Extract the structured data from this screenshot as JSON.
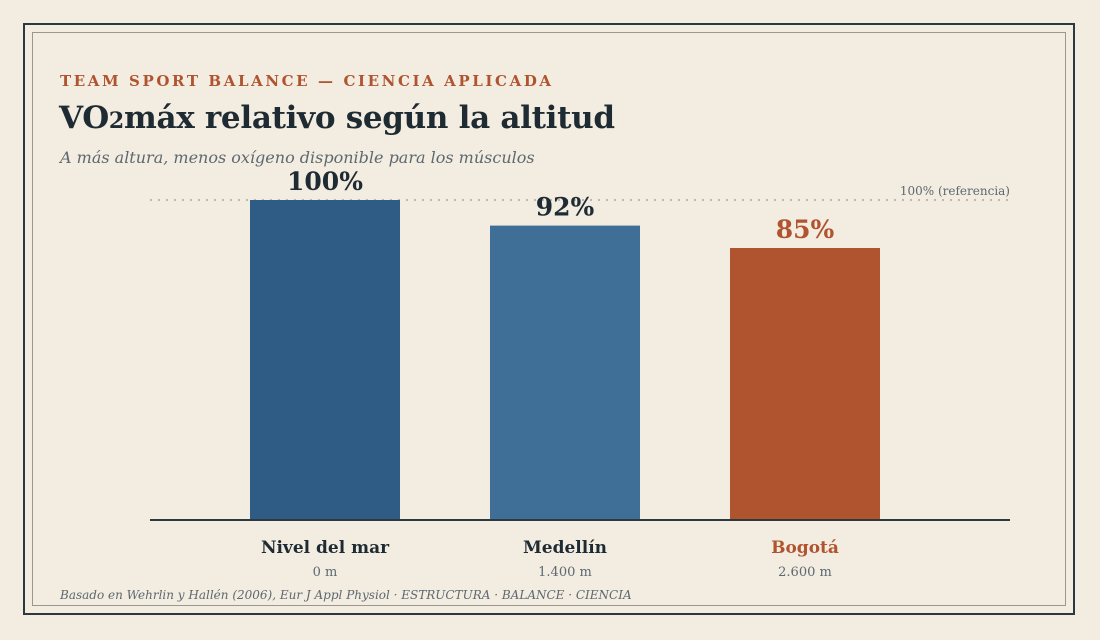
{
  "header": {
    "eyebrow": "TEAM SPORT BALANCE — CIENCIA APLICADA",
    "title": "VO2máx relativo según la altitud",
    "subtitle": "A más altura, menos oxígeno disponible para los músculos"
  },
  "footer": {
    "source": "Basado en Wehrlin y Hallén (2006), Eur J Appl Physiol · ESTRUCTURA · BALANCE · CIENCIA"
  },
  "colors": {
    "bar_dark": "#2e5c84",
    "bar_mid": "#3f6f97",
    "bar_highlight": "#b0532f",
    "text_dark": "#1f2b33",
    "muted": "#5d6870",
    "background": "#f3ece1"
  },
  "chart_data": {
    "type": "bar",
    "categories": [
      "Nivel del mar",
      "Medellín",
      "Bogotá"
    ],
    "sublabels": [
      "0 m",
      "1.400 m",
      "2.600 m"
    ],
    "values": [
      100,
      92,
      85
    ],
    "value_labels": [
      "100%",
      "92%",
      "85%"
    ],
    "bar_colors": [
      "#2e5c84",
      "#3f6f97",
      "#b0532f"
    ],
    "highlight_index": 2,
    "reference_line": {
      "value": 100,
      "label": "100% (referencia)"
    },
    "ylim": [
      0,
      100
    ],
    "grid": false,
    "legend": "none"
  }
}
